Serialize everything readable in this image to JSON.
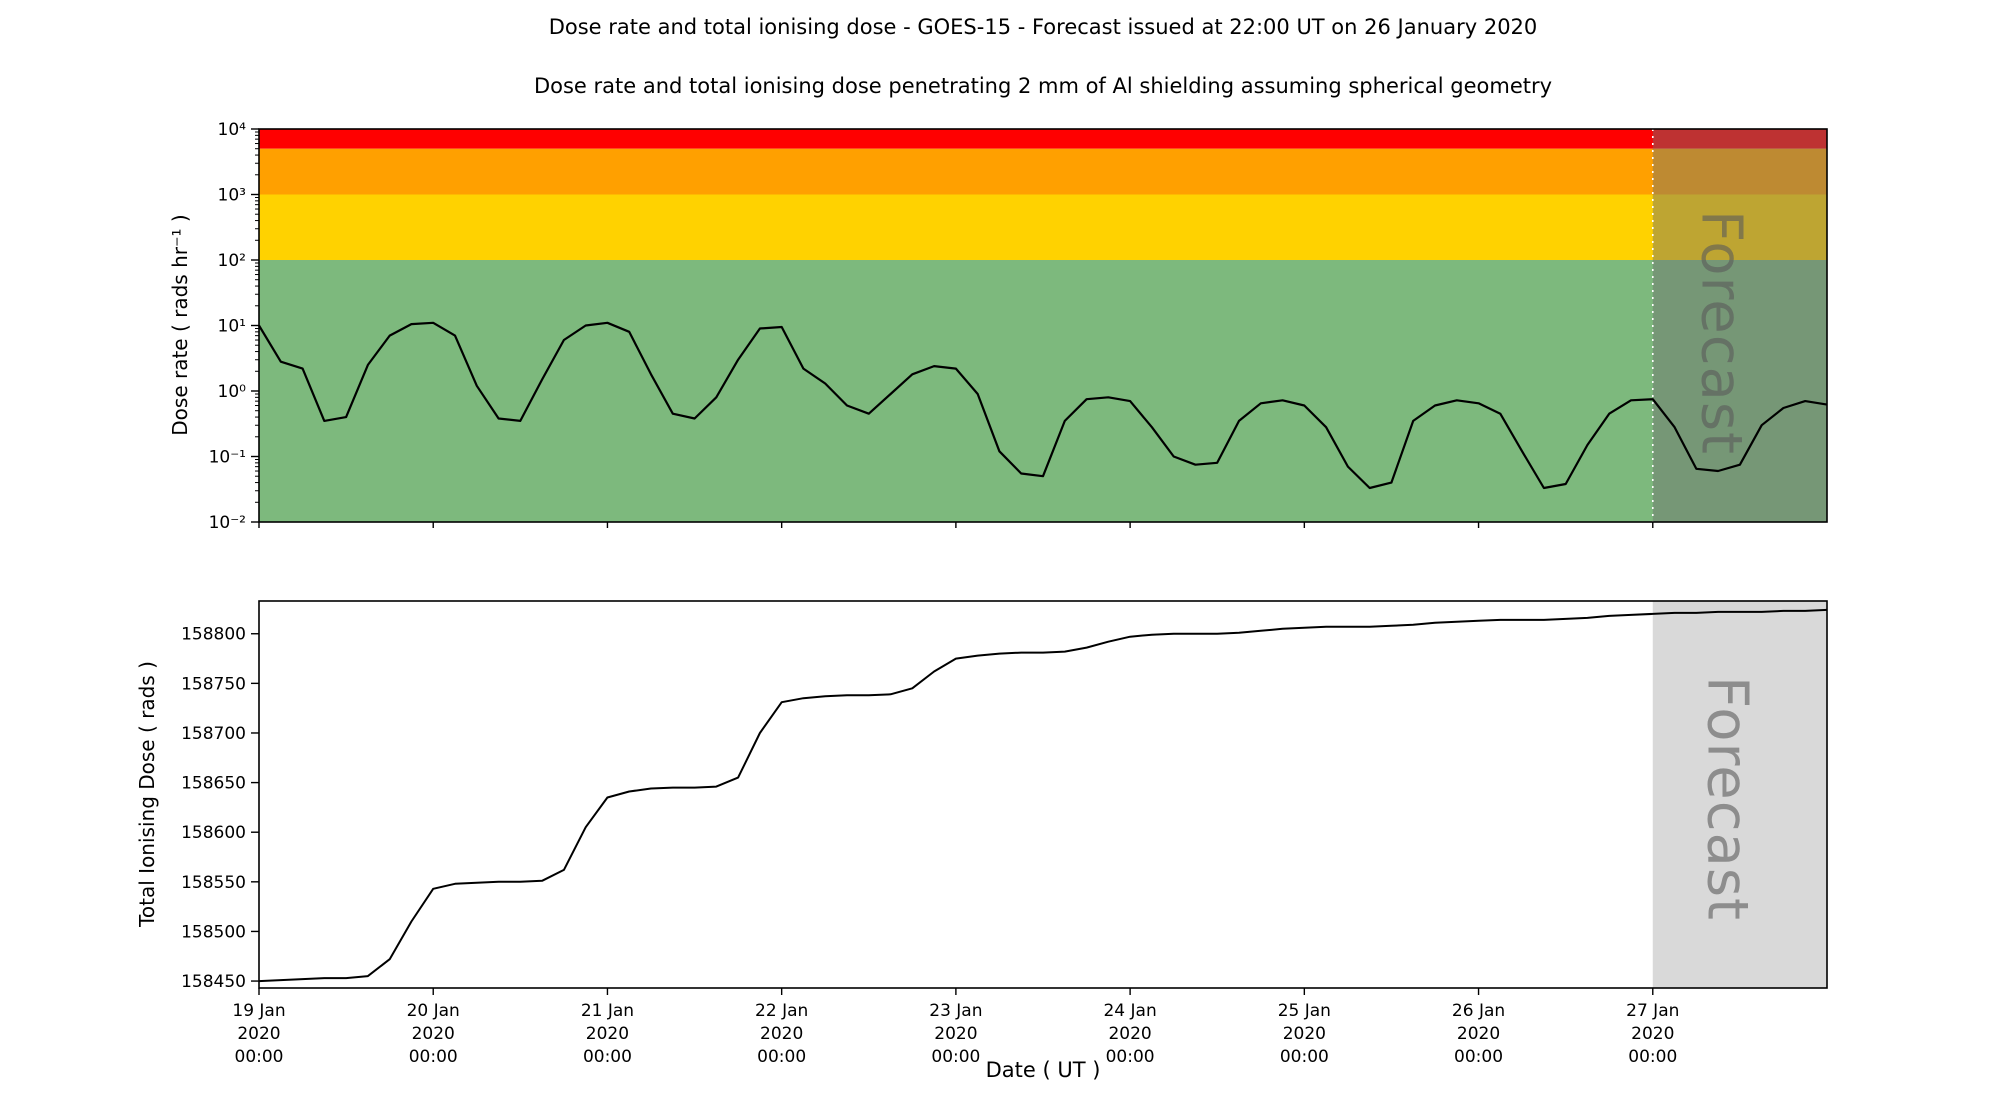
{
  "titles": {
    "main": "Dose rate and total ionising dose - GOES-15 - Forecast issued at 22:00 UT on 26 January 2020",
    "subtitle": "Dose rate and total ionising dose penetrating 2 mm of Al shielding assuming spherical geometry"
  },
  "forecast_label": "Forecast",
  "x_axis": {
    "label": "Date ( UT )",
    "start_hour": 0,
    "end_hour": 216,
    "forecast_start_hour": 192,
    "tick_hours": [
      0,
      24,
      48,
      72,
      96,
      120,
      144,
      168,
      192
    ],
    "tick_labels": [
      [
        "19 Jan",
        "2020",
        "00:00"
      ],
      [
        "20 Jan",
        "2020",
        "00:00"
      ],
      [
        "21 Jan",
        "2020",
        "00:00"
      ],
      [
        "22 Jan",
        "2020",
        "00:00"
      ],
      [
        "23 Jan",
        "2020",
        "00:00"
      ],
      [
        "24 Jan",
        "2020",
        "00:00"
      ],
      [
        "25 Jan",
        "2020",
        "00:00"
      ],
      [
        "26 Jan",
        "2020",
        "00:00"
      ],
      [
        "27 Jan",
        "2020",
        "00:00"
      ]
    ]
  },
  "chart_data": [
    {
      "type": "line",
      "name": "dose-rate",
      "ylabel": "Dose rate ( rads hr⁻¹ )",
      "yscale": "log",
      "ylim": [
        0.01,
        10000
      ],
      "grid": false,
      "line_color": "#000000",
      "ytick_values": [
        10000,
        1000,
        100,
        10,
        1,
        0.1,
        0.01
      ],
      "ytick_labels": [
        "10⁴",
        "10³",
        "10²",
        "10¹",
        "10⁰",
        "10⁻¹",
        "10⁻²"
      ],
      "bands": [
        {
          "name": "red",
          "from": 5000,
          "to": 10000,
          "color": "#ff0000"
        },
        {
          "name": "orange",
          "from": 1000,
          "to": 5000,
          "color": "#ffa000"
        },
        {
          "name": "yellow",
          "from": 100,
          "to": 1000,
          "color": "#ffd200"
        },
        {
          "name": "green",
          "from": 0.01,
          "to": 100,
          "color": "#7db97d"
        }
      ],
      "forecast_overlay_color": "#6e6e6e",
      "forecast_overlay_opacity": 0.45,
      "x_hours": [
        0,
        3,
        6,
        9,
        12,
        15,
        18,
        21,
        24,
        27,
        30,
        33,
        36,
        39,
        42,
        45,
        48,
        51,
        54,
        57,
        60,
        63,
        66,
        69,
        72,
        75,
        78,
        81,
        84,
        87,
        90,
        93,
        96,
        99,
        102,
        105,
        108,
        111,
        114,
        117,
        120,
        123,
        126,
        129,
        132,
        135,
        138,
        141,
        144,
        147,
        150,
        153,
        156,
        159,
        162,
        165,
        168,
        171,
        174,
        177,
        180,
        183,
        186,
        189,
        192,
        195,
        198,
        201,
        204,
        207,
        210,
        213,
        216
      ],
      "y_values": [
        10,
        2.8,
        2.2,
        0.35,
        0.4,
        2.5,
        7,
        10.5,
        11,
        7,
        1.2,
        0.38,
        0.35,
        1.5,
        6,
        10,
        11,
        8,
        1.8,
        0.45,
        0.38,
        0.8,
        3,
        9,
        9.5,
        2.2,
        1.3,
        0.6,
        0.45,
        0.9,
        1.8,
        2.4,
        2.2,
        0.9,
        0.12,
        0.055,
        0.05,
        0.35,
        0.75,
        0.8,
        0.7,
        0.28,
        0.1,
        0.075,
        0.08,
        0.35,
        0.65,
        0.72,
        0.6,
        0.28,
        0.07,
        0.033,
        0.04,
        0.35,
        0.6,
        0.72,
        0.65,
        0.45,
        0.12,
        0.033,
        0.038,
        0.15,
        0.45,
        0.72,
        0.75,
        0.28,
        0.065,
        0.06,
        0.075,
        0.3,
        0.55,
        0.7,
        0.62
      ]
    },
    {
      "type": "line",
      "name": "total-ionising-dose",
      "ylabel": "Total Ionising Dose ( rads )",
      "yscale": "linear",
      "ylim": [
        158443,
        158833
      ],
      "grid": false,
      "line_color": "#000000",
      "ytick_values": [
        158450,
        158500,
        158550,
        158600,
        158650,
        158700,
        158750,
        158800
      ],
      "ytick_labels": [
        "158450",
        "158500",
        "158550",
        "158600",
        "158650",
        "158700",
        "158750",
        "158800"
      ],
      "forecast_fill_color": "#d9d9d9",
      "x_hours": [
        0,
        3,
        6,
        9,
        12,
        15,
        18,
        21,
        24,
        27,
        30,
        33,
        36,
        39,
        42,
        45,
        48,
        51,
        54,
        57,
        60,
        63,
        66,
        69,
        72,
        75,
        78,
        81,
        84,
        87,
        90,
        93,
        96,
        99,
        102,
        105,
        108,
        111,
        114,
        117,
        120,
        123,
        126,
        129,
        132,
        135,
        138,
        141,
        144,
        147,
        150,
        153,
        156,
        159,
        162,
        165,
        168,
        171,
        174,
        177,
        180,
        183,
        186,
        189,
        192,
        195,
        198,
        201,
        204,
        207,
        210,
        213,
        216
      ],
      "y_values": [
        158450,
        158451,
        158452,
        158453,
        158453,
        158455,
        158472,
        158510,
        158543,
        158548,
        158549,
        158550,
        158550,
        158551,
        158562,
        158605,
        158635,
        158641,
        158644,
        158645,
        158645,
        158646,
        158655,
        158700,
        158731,
        158735,
        158737,
        158738,
        158738,
        158739,
        158745,
        158762,
        158775,
        158778,
        158780,
        158781,
        158781,
        158782,
        158786,
        158792,
        158797,
        158799,
        158800,
        158800,
        158800,
        158801,
        158803,
        158805,
        158806,
        158807,
        158807,
        158807,
        158808,
        158809,
        158811,
        158812,
        158813,
        158814,
        158814,
        158814,
        158815,
        158816,
        158818,
        158819,
        158820,
        158821,
        158821,
        158822,
        158822,
        158822,
        158823,
        158823,
        158824
      ]
    }
  ]
}
